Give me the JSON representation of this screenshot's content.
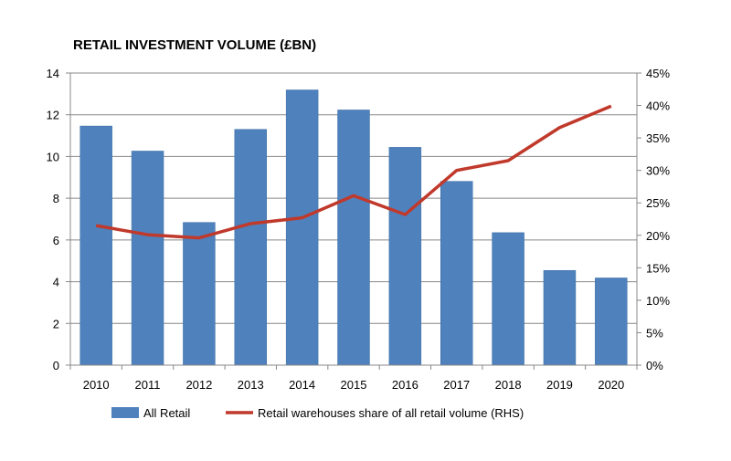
{
  "chart_data": {
    "type": "bar+line",
    "title": "RETAIL INVESTMENT VOLUME (£BN)",
    "categories": [
      "2010",
      "2011",
      "2012",
      "2013",
      "2014",
      "2015",
      "2016",
      "2017",
      "2018",
      "2019",
      "2020"
    ],
    "series": [
      {
        "name": "All Retail",
        "type": "bar",
        "axis": "left",
        "color": "#4f81bd",
        "values": [
          11.46,
          10.26,
          6.84,
          11.3,
          13.19,
          12.23,
          10.44,
          8.81,
          6.35,
          4.54,
          4.18
        ]
      },
      {
        "name": "Retail warehouses share of all retail volume (RHS)",
        "type": "line",
        "axis": "right",
        "color": "#c0392b",
        "values": [
          21.5,
          20.1,
          19.6,
          21.8,
          22.7,
          26.1,
          23.2,
          30.0,
          31.5,
          36.6,
          39.9
        ]
      }
    ],
    "ylim": [
      0,
      14
    ],
    "yticks": [
      "0",
      "2",
      "4",
      "6",
      "8",
      "10",
      "12",
      "14"
    ],
    "y2lim": [
      0,
      45
    ],
    "y2ticks": [
      "0%",
      "5%",
      "10%",
      "15%",
      "20%",
      "25%",
      "30%",
      "35%",
      "40%",
      "45%"
    ],
    "grid": true,
    "legend": "bottom"
  }
}
